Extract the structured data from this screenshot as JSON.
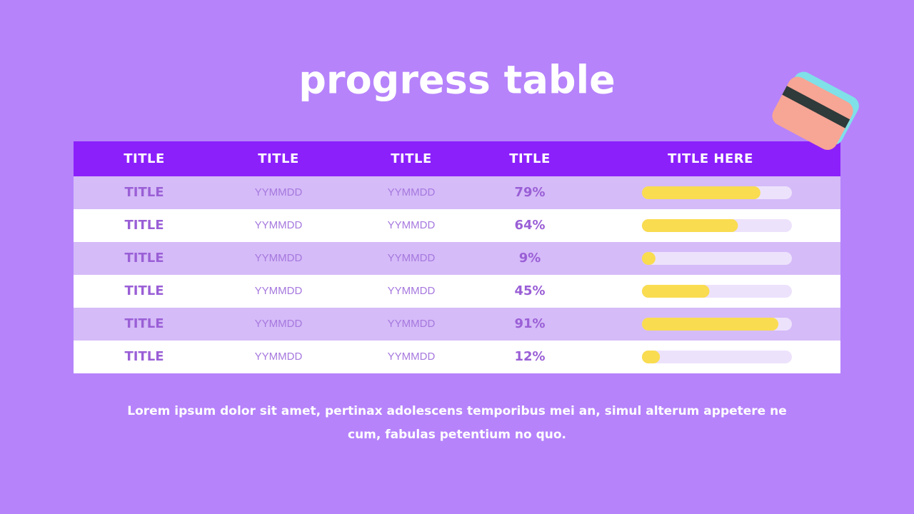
{
  "header": {
    "title": "progress table"
  },
  "table": {
    "columns": [
      "TITLE",
      "TITLE",
      "TITLE",
      "TITLE",
      "TITLE HERE"
    ],
    "rows": [
      {
        "name": "TITLE",
        "start": "YYMMDD",
        "end": "YYMMDD",
        "progress": 79,
        "progress_label": "79%"
      },
      {
        "name": "TITLE",
        "start": "YYMMDD",
        "end": "YYMMDD",
        "progress": 64,
        "progress_label": "64%"
      },
      {
        "name": "TITLE",
        "start": "YYMMDD",
        "end": "YYMMDD",
        "progress": 9,
        "progress_label": "9%"
      },
      {
        "name": "TITLE",
        "start": "YYMMDD",
        "end": "YYMMDD",
        "progress": 45,
        "progress_label": "45%"
      },
      {
        "name": "TITLE",
        "start": "YYMMDD",
        "end": "YYMMDD",
        "progress": 91,
        "progress_label": "91%"
      },
      {
        "name": "TITLE",
        "start": "YYMMDD",
        "end": "YYMMDD",
        "progress": 12,
        "progress_label": "12%"
      }
    ]
  },
  "footer": {
    "lines": [
      "Lorem ipsum dolor sit amet, pertinax adolescens temporibus mei an, simul alterum appetere ne",
      "cum, fabulas petentium no quo."
    ]
  }
}
